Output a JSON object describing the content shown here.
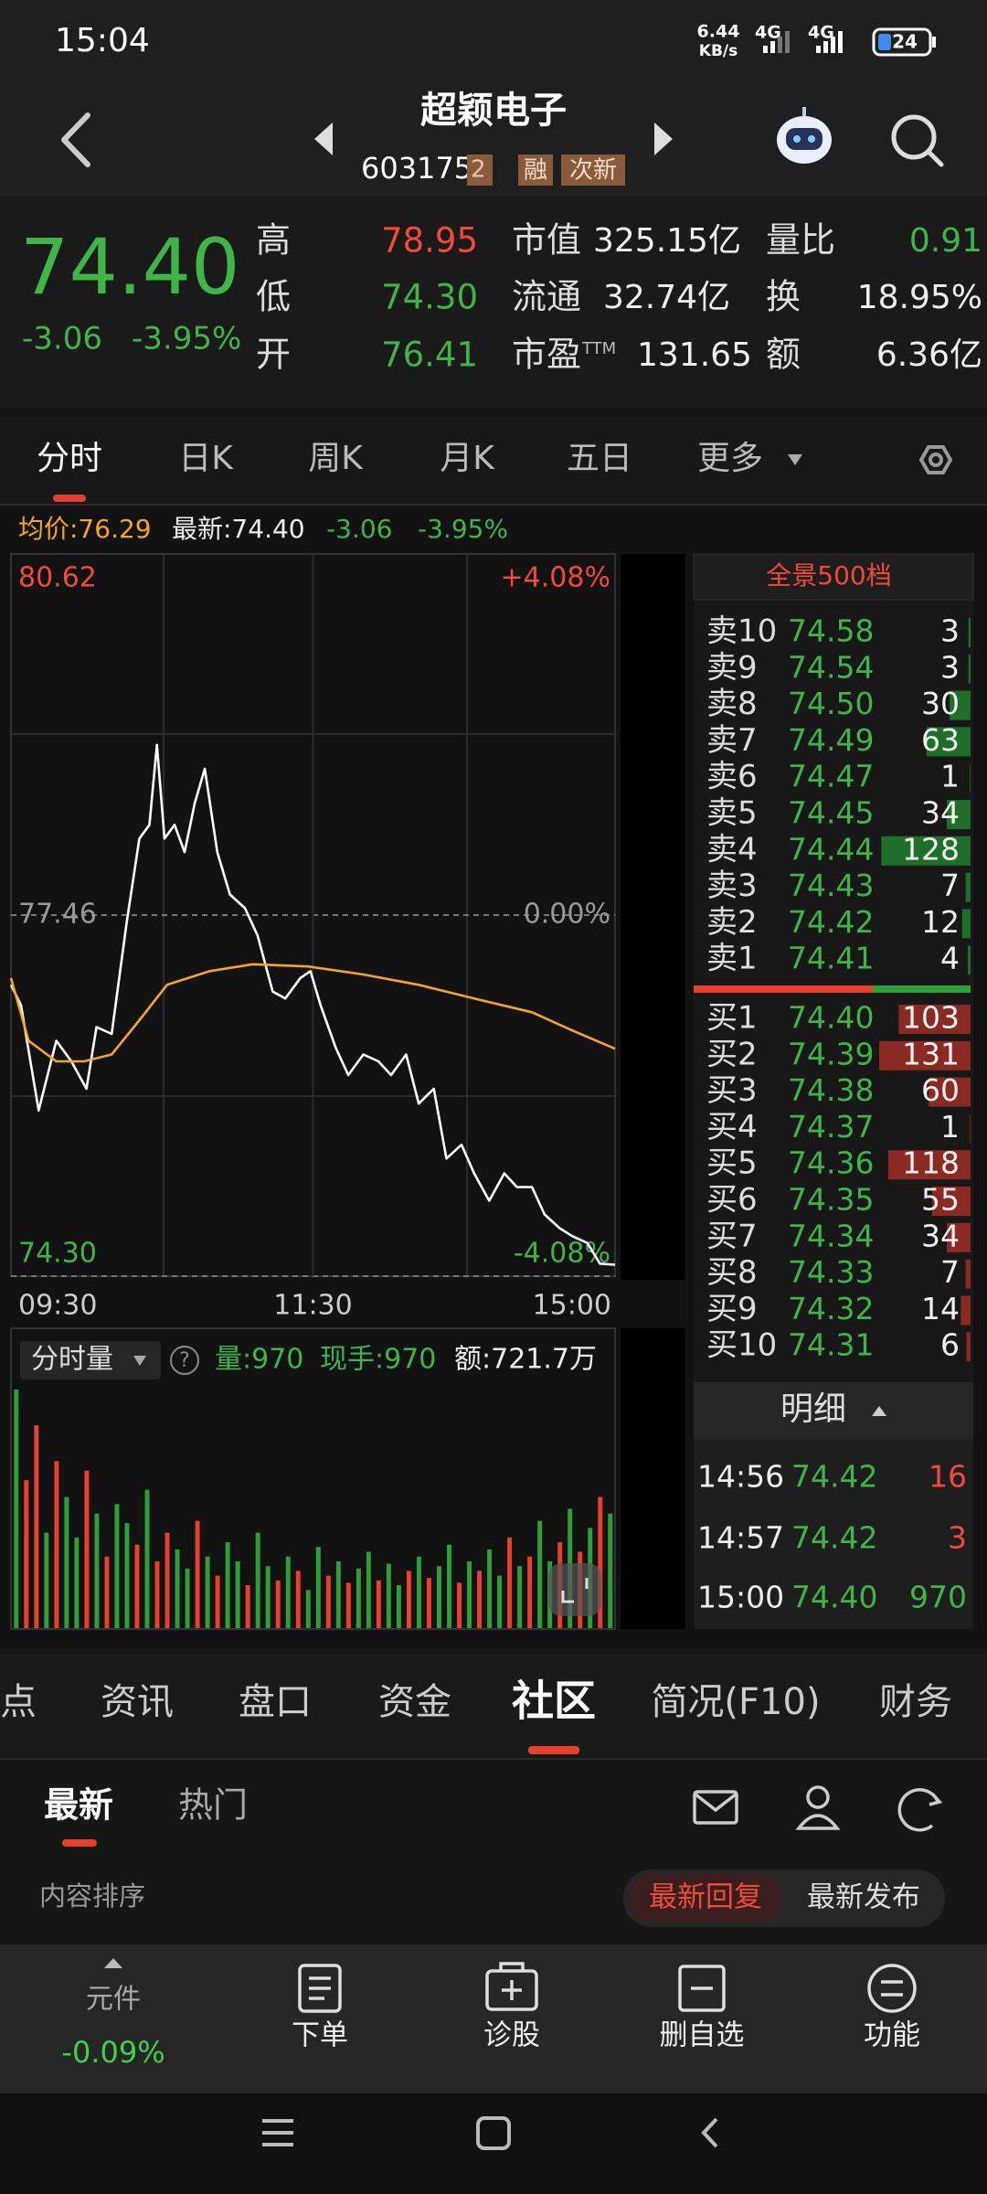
{
  "status_bar": {
    "time": "15:04",
    "net_speed": "6.44",
    "net_speed_unit": "KB/s",
    "signal_1": "4G",
    "signal_2": "4G",
    "battery": "24"
  },
  "header": {
    "title": "超颖电子",
    "code": "603175",
    "code_extra": "2",
    "tags": [
      "融",
      "次新"
    ]
  },
  "quote": {
    "price": "74.40",
    "change": "-3.06",
    "change_pct": "-3.95%",
    "col1": [
      {
        "label": "高",
        "value": "78.95"
      },
      {
        "label": "低",
        "value": "74.30"
      },
      {
        "label": "开",
        "value": "76.41"
      }
    ],
    "col2": [
      {
        "label": "市值",
        "value": "325.15亿"
      },
      {
        "label": "流通",
        "value": "32.74亿"
      },
      {
        "label": "市盈",
        "label_sup": "TTM",
        "value": "131.65"
      }
    ],
    "col3": [
      {
        "label": "量比",
        "value": "0.91"
      },
      {
        "label": "换",
        "value": "18.95%"
      },
      {
        "label": "额",
        "value": "6.36亿"
      }
    ]
  },
  "chart_tabs": [
    "分时",
    "日K",
    "周K",
    "月K",
    "五日",
    "更多"
  ],
  "info_line": {
    "avg": "均价:76.29",
    "latest": "最新:74.40",
    "change": "-3.06",
    "change_pct": "-3.95%"
  },
  "chart_data": {
    "type": "line",
    "xlim": [
      0,
      240
    ],
    "xticks": [
      {
        "value": 0,
        "label": "09:30"
      },
      {
        "value": 120,
        "label": "11:30"
      },
      {
        "value": 240,
        "label": "15:00"
      }
    ],
    "ylim": [
      74.3,
      80.62
    ],
    "yticks": [
      {
        "value": 74.3,
        "label": "74.30"
      },
      77.46,
      80.62
    ],
    "y2lim": [
      -4.08,
      4.08
    ],
    "y2ticks": [
      {
        "value": -4.08,
        "label": "-4.08%"
      },
      {
        "value": 0,
        "label": "0.00%"
      },
      {
        "value": 4.08,
        "label": "+4.08%"
      }
    ],
    "series": [
      {
        "color": "#ffffff",
        "x": [
          0,
          4,
          11,
          18,
          24,
          30,
          34,
          40,
          46,
          51,
          55,
          58,
          61,
          65,
          69,
          73,
          77,
          82,
          87,
          93,
          98,
          104,
          109,
          115,
          119,
          123,
          129,
          134,
          140,
          146,
          151,
          157,
          162,
          168,
          173,
          179,
          184,
          190,
          196,
          201,
          207,
          212,
          218,
          223,
          229,
          234,
          240
        ],
        "values": [
          76.85,
          76.67,
          75.75,
          76.36,
          76.18,
          75.94,
          76.48,
          76.42,
          77.4,
          78.13,
          78.25,
          78.95,
          78.13,
          78.25,
          78.01,
          78.44,
          78.74,
          78.01,
          77.64,
          77.52,
          77.28,
          76.79,
          76.73,
          76.91,
          76.97,
          76.67,
          76.3,
          76.06,
          76.24,
          76.18,
          76.06,
          76.24,
          75.81,
          75.94,
          75.33,
          75.45,
          75.2,
          74.96,
          75.2,
          75.08,
          75.08,
          74.84,
          74.72,
          74.65,
          74.59,
          74.41,
          74.4
        ]
      },
      {
        "color": "#f5a623",
        "x": [
          0,
          7,
          18,
          29,
          40,
          51,
          62,
          79,
          96,
          118,
          140,
          162,
          184,
          207,
          223,
          240
        ],
        "values": [
          76.91,
          76.36,
          76.18,
          76.18,
          76.24,
          76.54,
          76.85,
          76.97,
          77.03,
          77.01,
          76.94,
          76.85,
          76.73,
          76.61,
          76.45,
          76.29
        ]
      }
    ]
  },
  "volume_panel": {
    "selector": "分时量",
    "help": "?",
    "volume": "量:970",
    "current": "现手:970",
    "amount": "额:721.7万",
    "up_color": "#e8402f",
    "down_color": "#2f9e3a",
    "values": [
      100,
      62,
      85,
      40,
      70,
      55,
      38,
      66,
      48,
      30,
      52,
      44,
      35,
      58,
      28,
      40,
      33,
      25,
      45,
      30,
      22,
      36,
      28,
      18,
      40,
      26,
      20,
      30,
      24,
      16,
      34,
      22,
      28,
      19,
      25,
      32,
      20,
      27,
      18,
      24,
      30,
      21,
      26,
      35,
      19,
      28,
      24,
      33,
      22,
      38,
      26,
      30,
      45,
      28,
      36,
      50,
      32,
      42,
      55,
      48
    ],
    "directions": [
      "down",
      "up",
      "up",
      "down",
      "up",
      "down",
      "down",
      "up",
      "down",
      "up",
      "down",
      "down",
      "up",
      "down",
      "up",
      "up",
      "down",
      "down",
      "up",
      "down",
      "up",
      "down",
      "down",
      "up",
      "down",
      "down",
      "up",
      "down",
      "up",
      "down",
      "down",
      "up",
      "down",
      "up",
      "down",
      "down",
      "up",
      "down",
      "down",
      "up",
      "down",
      "up",
      "down",
      "down",
      "up",
      "down",
      "up",
      "down",
      "down",
      "up",
      "down",
      "up",
      "down",
      "down",
      "up",
      "down",
      "up",
      "down",
      "up",
      "down"
    ]
  },
  "order_book": {
    "title": "全景500档",
    "asks": [
      {
        "label": "卖10",
        "price": "74.58",
        "volume": 3
      },
      {
        "label": "卖9",
        "price": "74.54",
        "volume": 3
      },
      {
        "label": "卖8",
        "price": "74.50",
        "volume": 30
      },
      {
        "label": "卖7",
        "price": "74.49",
        "volume": 63
      },
      {
        "label": "卖6",
        "price": "74.47",
        "volume": 1
      },
      {
        "label": "卖5",
        "price": "74.45",
        "volume": 34
      },
      {
        "label": "卖4",
        "price": "74.44",
        "volume": 128
      },
      {
        "label": "卖3",
        "price": "74.43",
        "volume": 7
      },
      {
        "label": "卖2",
        "price": "74.42",
        "volume": 12
      },
      {
        "label": "卖1",
        "price": "74.41",
        "volume": 4
      }
    ],
    "bids": [
      {
        "label": "买1",
        "price": "74.40",
        "volume": 103
      },
      {
        "label": "买2",
        "price": "74.39",
        "volume": 131
      },
      {
        "label": "买3",
        "price": "74.38",
        "volume": 60
      },
      {
        "label": "买4",
        "price": "74.37",
        "volume": 1
      },
      {
        "label": "买5",
        "price": "74.36",
        "volume": 118
      },
      {
        "label": "买6",
        "price": "74.35",
        "volume": 55
      },
      {
        "label": "买7",
        "price": "74.34",
        "volume": 34
      },
      {
        "label": "买8",
        "price": "74.33",
        "volume": 7
      },
      {
        "label": "买9",
        "price": "74.32",
        "volume": 14
      },
      {
        "label": "买10",
        "price": "74.31",
        "volume": 6
      }
    ]
  },
  "trades": {
    "title": "明细",
    "rows": [
      {
        "time": "14:56",
        "price": "74.42",
        "volume": "16"
      },
      {
        "time": "14:57",
        "price": "74.42",
        "volume": "3"
      },
      {
        "time": "15:00",
        "price": "74.40",
        "volume": "970"
      }
    ]
  },
  "section_tabs": [
    "点",
    "资讯",
    "盘口",
    "资金",
    "社区",
    "简况(F10)",
    "财务"
  ],
  "sub_tabs": [
    "最新",
    "热门"
  ],
  "sort": {
    "label": "内容排序",
    "options": [
      "最新回复",
      "最新发布"
    ]
  },
  "bottom_nav": {
    "index": {
      "name": "元件",
      "change": "-0.09%"
    },
    "items": [
      "下单",
      "诊股",
      "删自选",
      "功能"
    ]
  }
}
